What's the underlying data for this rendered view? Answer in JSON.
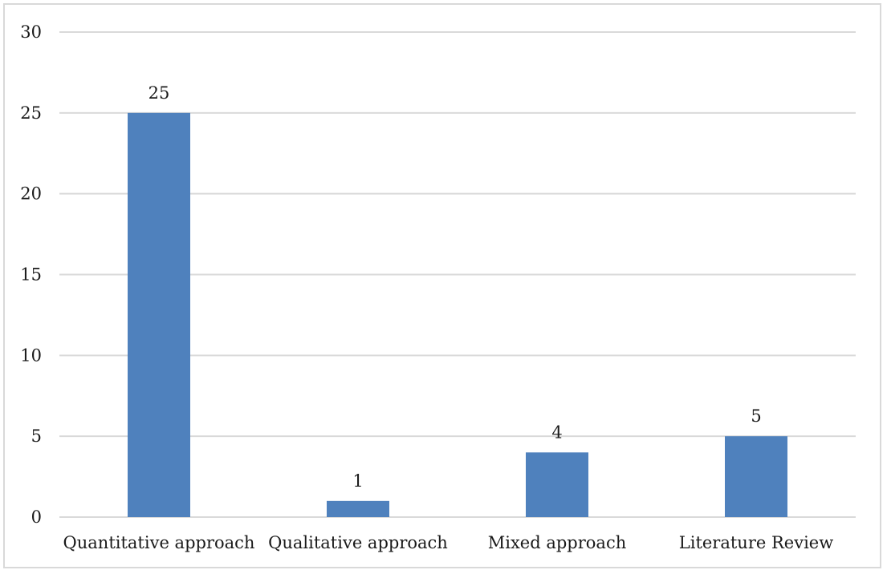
{
  "chart_data": {
    "type": "bar",
    "categories": [
      "Quantitative approach",
      "Qualitative approach",
      "Mixed approach",
      "Literature Review"
    ],
    "values": [
      25,
      1,
      4,
      5
    ],
    "data_labels": [
      "25",
      "1",
      "4",
      "5"
    ],
    "title": "",
    "xlabel": "",
    "ylabel": "",
    "ylim": [
      0,
      30
    ],
    "yticks": [
      0,
      5,
      10,
      15,
      20,
      25,
      30
    ],
    "ytick_labels": [
      "0",
      "5",
      "10",
      "15",
      "20",
      "25",
      "30"
    ],
    "grid": true,
    "legend": "none",
    "bar_color": "#4f81bd",
    "grid_color": "#d9d9d9"
  }
}
